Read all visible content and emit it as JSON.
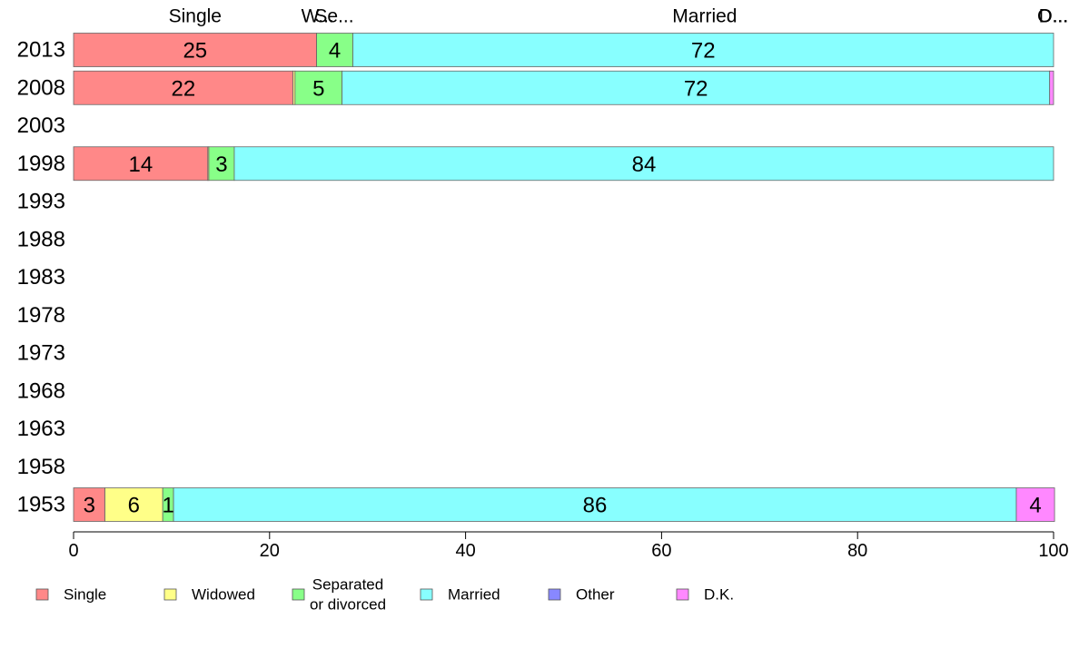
{
  "chart_data": {
    "type": "bar",
    "orientation": "horizontal",
    "stacked": true,
    "categories": [
      "2013",
      "2008",
      "2003",
      "1998",
      "1993",
      "1988",
      "1983",
      "1978",
      "1973",
      "1968",
      "1963",
      "1958",
      "1953"
    ],
    "series": [
      {
        "name": "Single",
        "color": "#ff8888",
        "values": [
          24.8,
          22.4,
          null,
          13.7,
          null,
          null,
          null,
          null,
          null,
          null,
          null,
          null,
          3.2
        ]
      },
      {
        "name": "Widowed",
        "color": "#ffff88",
        "values": [
          0,
          0.2,
          null,
          0.1,
          null,
          null,
          null,
          null,
          null,
          null,
          null,
          null,
          5.9
        ]
      },
      {
        "name": "Separated\nor divorced",
        "color": "#88ff88",
        "values": [
          3.7,
          4.8,
          null,
          2.6,
          null,
          null,
          null,
          null,
          null,
          null,
          null,
          null,
          1.1
        ]
      },
      {
        "name": "Married",
        "color": "#88ffff",
        "values": [
          71.5,
          72.2,
          null,
          83.6,
          null,
          null,
          null,
          null,
          null,
          null,
          null,
          null,
          86.0
        ]
      },
      {
        "name": "Other",
        "color": "#8888ff",
        "values": [
          0,
          0,
          null,
          0,
          null,
          null,
          null,
          null,
          null,
          null,
          null,
          null,
          0
        ]
      },
      {
        "name": "D.K.",
        "color": "#ff88ff",
        "values": [
          0,
          0.4,
          null,
          0,
          null,
          null,
          null,
          null,
          null,
          null,
          null,
          null,
          3.9
        ]
      }
    ],
    "top_labels": [
      {
        "text": "Single",
        "at": 12.4
      },
      {
        "text": "W...",
        "at": 24.9
      },
      {
        "text": "Se...",
        "at": 26.6
      },
      {
        "text": "Married",
        "at": 64.4
      },
      {
        "text": "O...",
        "at": 99.9
      },
      {
        "text": "D...",
        "at": 100.0
      }
    ],
    "xticks": [
      0,
      20,
      40,
      60,
      80,
      100
    ],
    "xlim": [
      0,
      100
    ],
    "label_min_width": 1,
    "legend_position": "bottom",
    "grid": false
  }
}
